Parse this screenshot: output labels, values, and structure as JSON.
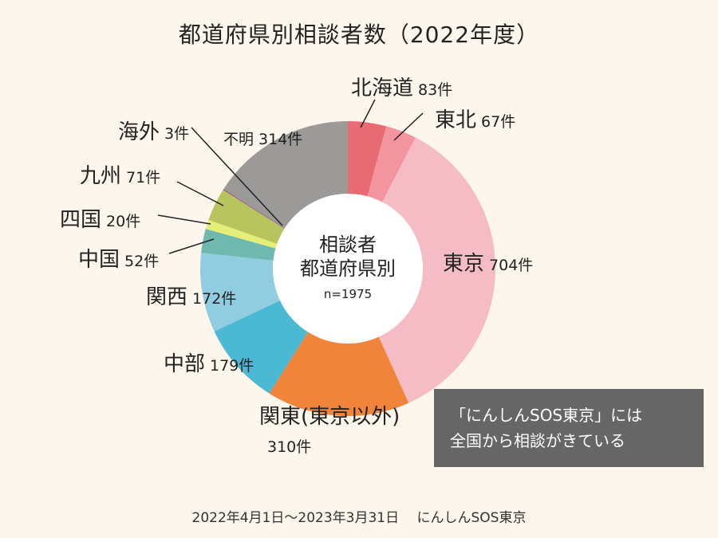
{
  "chart_data": {
    "type": "pie",
    "donut": true,
    "title": "都道府県別相談者数（2022年度）",
    "center_label": [
      "相談者",
      "都道府県別"
    ],
    "center_sub": "n=1975",
    "unit": "件",
    "slices": [
      {
        "name": "北海道",
        "value": 83,
        "label": "83件",
        "color": "#e86a72"
      },
      {
        "name": "東北",
        "value": 67,
        "label": "67件",
        "color": "#f2959f"
      },
      {
        "name": "東京",
        "value": 704,
        "label": "704件",
        "color": "#f6bcc6"
      },
      {
        "name": "関東(東京以外)",
        "value": 310,
        "label": "310件",
        "color": "#f0843a"
      },
      {
        "name": "中部",
        "value": 179,
        "label": "179件",
        "color": "#4bb8d4"
      },
      {
        "name": "関西",
        "value": 172,
        "label": "172件",
        "color": "#90cde0"
      },
      {
        "name": "中国",
        "value": 52,
        "label": "52件",
        "color": "#6fb8b0"
      },
      {
        "name": "四国",
        "value": 20,
        "label": "20件",
        "color": "#e4ef78"
      },
      {
        "name": "九州",
        "value": 71,
        "label": "71件",
        "color": "#b8c45e"
      },
      {
        "name": "海外",
        "value": 3,
        "label": "3件",
        "color": "#9a6a88"
      },
      {
        "name": "不明",
        "value": 314,
        "label": "314件",
        "color": "#9c9a98"
      }
    ]
  },
  "note": [
    "「にんしんSOS東京」には",
    "全国から相談がきている"
  ],
  "footer": "2022年4月1日～2023年3月31日　 にんしんSOS東京"
}
